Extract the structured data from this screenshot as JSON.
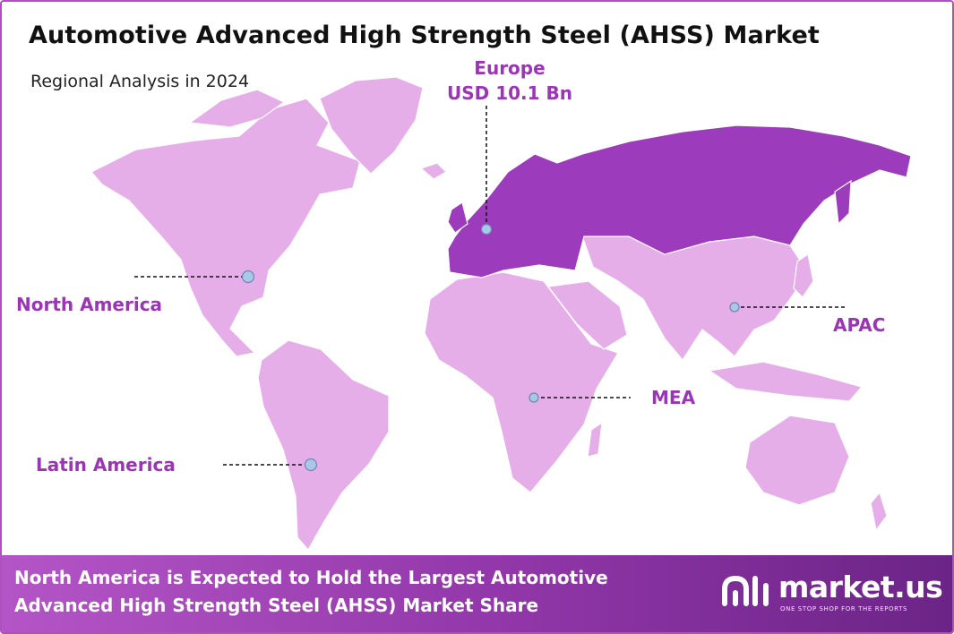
{
  "header": {
    "title": "Automotive Advanced High Strength Steel (AHSS) Market",
    "subtitle": "Regional Analysis in 2024"
  },
  "map": {
    "regions": [
      {
        "name": "North America",
        "value": ""
      },
      {
        "name": "Europe",
        "value": "USD 10.1 Bn",
        "highlighted": true
      },
      {
        "name": "APAC",
        "value": ""
      },
      {
        "name": "MEA",
        "value": ""
      },
      {
        "name": "Latin America",
        "value": ""
      }
    ],
    "colors": {
      "land": "#e6aee8",
      "highlight": "#9d3bbd",
      "marker": "#a9c7e6",
      "label": "#9a35b5"
    }
  },
  "banner": {
    "text": "North America is Expected to Hold the Largest Automotive Advanced High Strength Steel (AHSS) Market Share"
  },
  "brand": {
    "name": "market.us",
    "tagline": "ONE STOP SHOP FOR THE REPORTS"
  }
}
